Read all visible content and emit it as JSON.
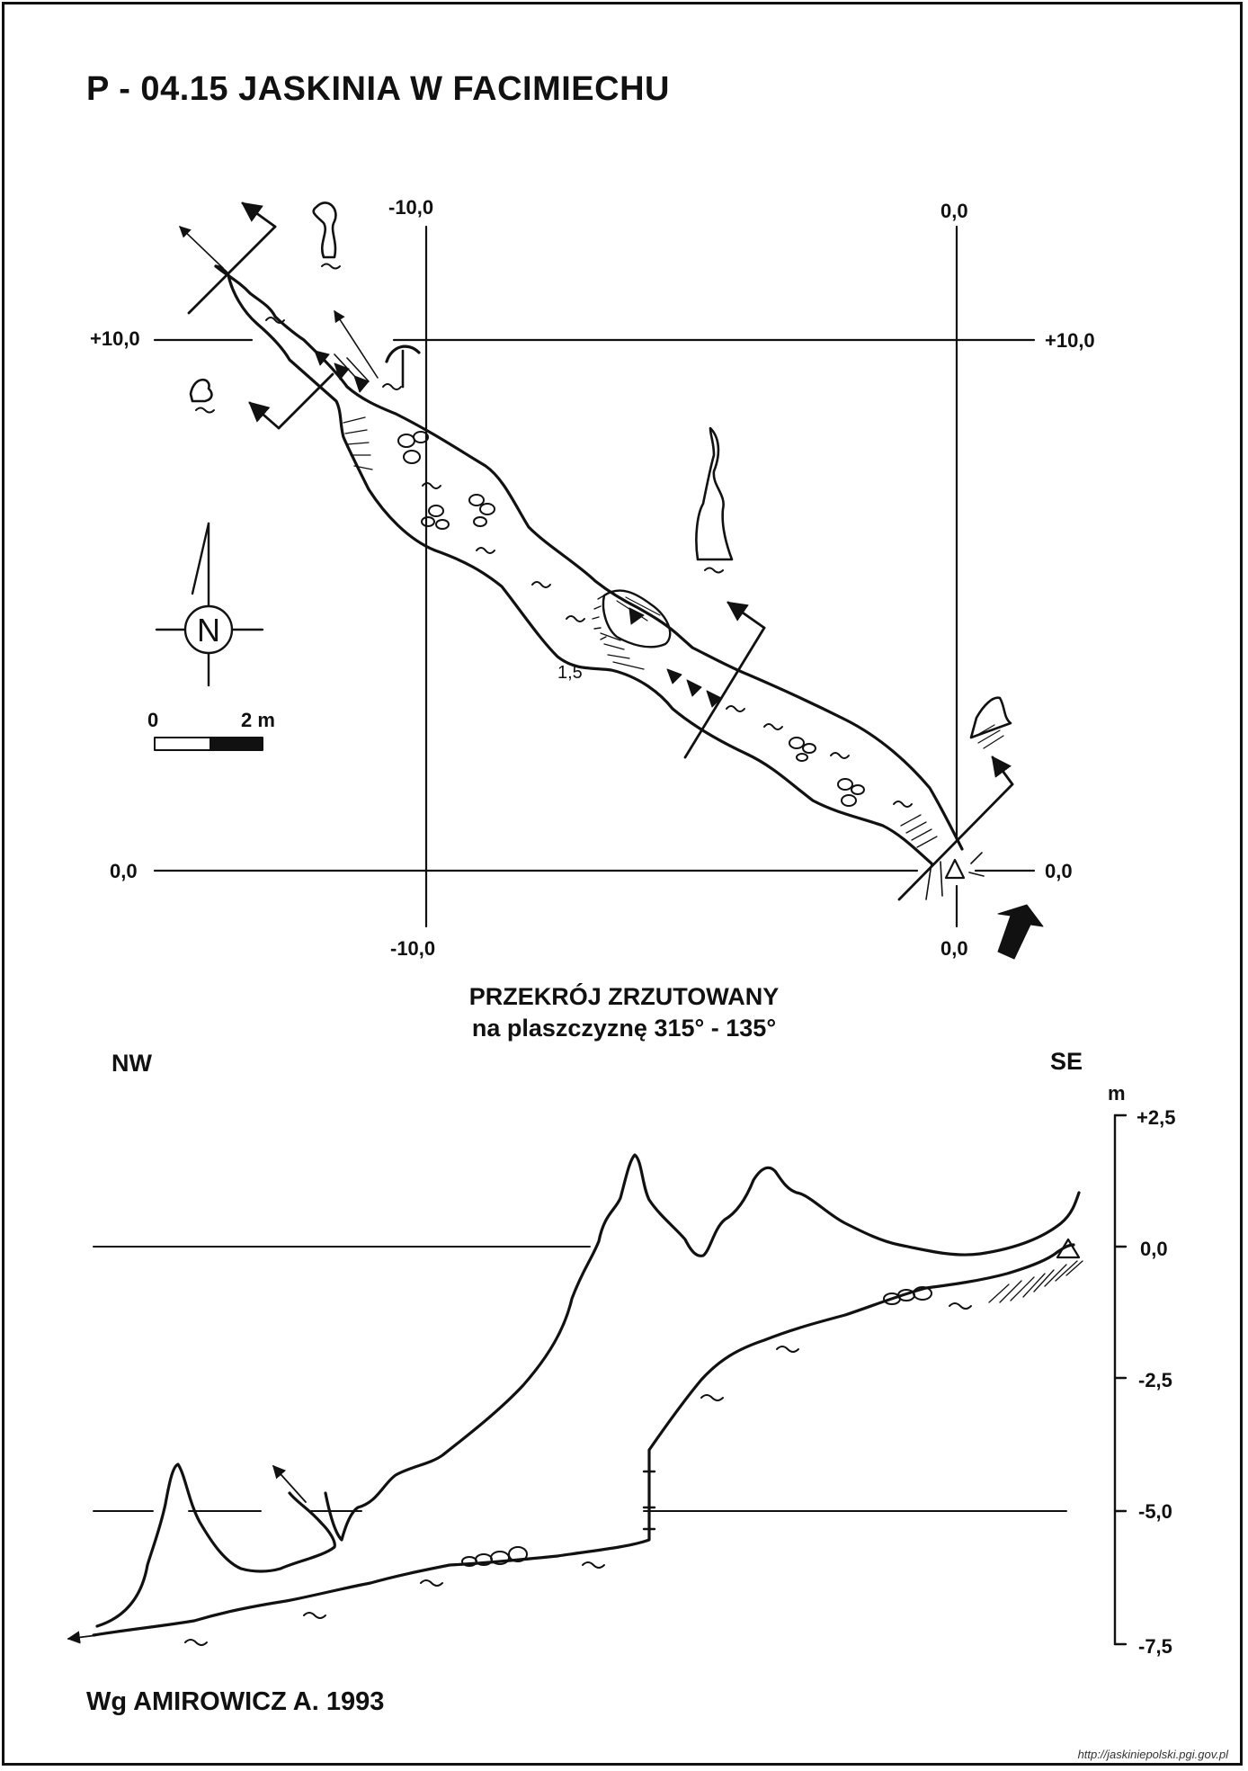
{
  "title": "P - 04.15  JASKINIA W FACIMIECHU",
  "plan": {
    "grid_labels": {
      "top_left": "-10,0",
      "top_right": "0,0",
      "bottom_left": "-10,0",
      "bottom_right": "0,0",
      "left_upper": "+10,0",
      "right_upper": "+10,0",
      "left_lower": "0,0",
      "right_lower": "0,0"
    },
    "height_label": "1,5",
    "north_label": "N",
    "scale": {
      "start": "0",
      "end": "2 m"
    }
  },
  "section": {
    "title_line1": "PRZEKRÓJ ZRZUTOWANY",
    "title_line2": "na plaszczyznę 315° - 135°",
    "left_dir": "NW",
    "right_dir": "SE",
    "unit": "m",
    "ticks": [
      "+2,5",
      "0,0",
      "-2,5",
      "-5,0",
      "-7,5"
    ]
  },
  "author": "Wg AMIROWICZ A. 1993",
  "source": "http://jaskiniepolski.pgi.gov.pl"
}
